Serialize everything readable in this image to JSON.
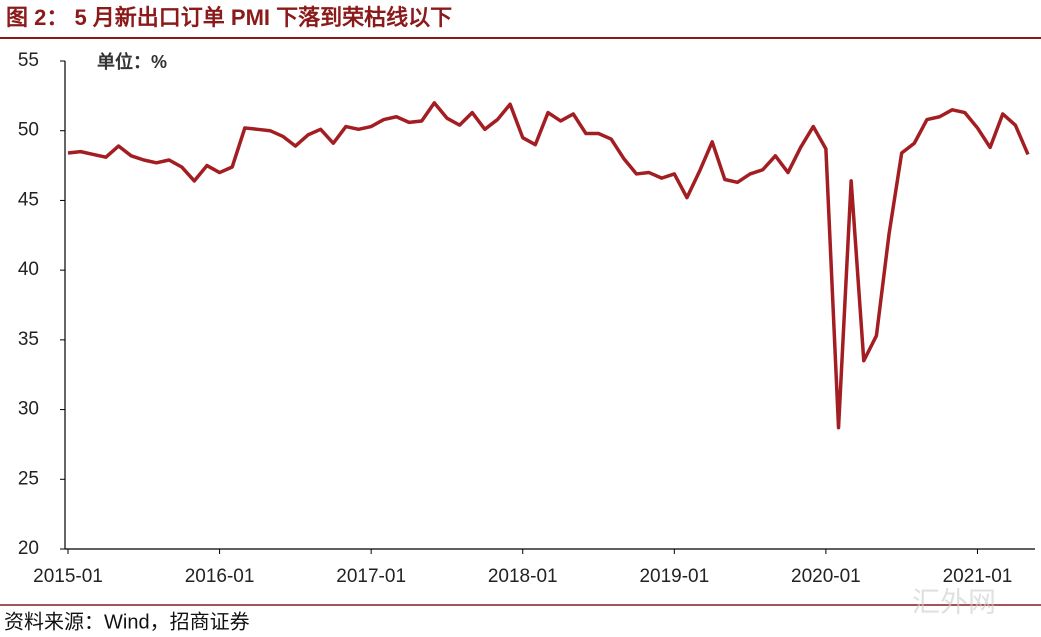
{
  "chart_data": {
    "type": "line",
    "title": "图 2： 5 月新出口订单 PMI 下落到荣枯线以下",
    "unit_label": "单位：%",
    "source": "资料来源：Wind，招商证券",
    "watermark": "汇外网",
    "x": [
      "2015-01",
      "2015-02",
      "2015-03",
      "2015-04",
      "2015-05",
      "2015-06",
      "2015-07",
      "2015-08",
      "2015-09",
      "2015-10",
      "2015-11",
      "2015-12",
      "2016-01",
      "2016-02",
      "2016-03",
      "2016-04",
      "2016-05",
      "2016-06",
      "2016-07",
      "2016-08",
      "2016-09",
      "2016-10",
      "2016-11",
      "2016-12",
      "2017-01",
      "2017-02",
      "2017-03",
      "2017-04",
      "2017-05",
      "2017-06",
      "2017-07",
      "2017-08",
      "2017-09",
      "2017-10",
      "2017-11",
      "2017-12",
      "2018-01",
      "2018-02",
      "2018-03",
      "2018-04",
      "2018-05",
      "2018-06",
      "2018-07",
      "2018-08",
      "2018-09",
      "2018-10",
      "2018-11",
      "2018-12",
      "2019-01",
      "2019-02",
      "2019-03",
      "2019-04",
      "2019-05",
      "2019-06",
      "2019-07",
      "2019-08",
      "2019-09",
      "2019-10",
      "2019-11",
      "2019-12",
      "2020-01",
      "2020-02",
      "2020-03",
      "2020-04",
      "2020-05",
      "2020-06",
      "2020-07",
      "2020-08",
      "2020-09",
      "2020-10",
      "2020-11",
      "2020-12",
      "2021-01",
      "2021-02",
      "2021-03",
      "2021-04",
      "2021-05"
    ],
    "series": [
      {
        "color": "#a31e22",
        "values": [
          48.4,
          48.5,
          48.3,
          48.1,
          48.9,
          48.2,
          47.9,
          47.7,
          47.9,
          47.4,
          46.4,
          47.5,
          47.0,
          47.4,
          50.2,
          50.1,
          50.0,
          49.6,
          48.9,
          49.7,
          50.1,
          49.1,
          50.3,
          50.1,
          50.3,
          50.8,
          51.0,
          50.6,
          50.7,
          52.0,
          50.9,
          50.4,
          51.3,
          50.1,
          50.8,
          51.9,
          49.5,
          49.0,
          51.3,
          50.7,
          51.2,
          49.8,
          49.8,
          49.4,
          48.0,
          46.9,
          47.0,
          46.6,
          46.9,
          45.2,
          47.1,
          49.2,
          46.5,
          46.3,
          46.9,
          47.2,
          48.2,
          47.0,
          48.8,
          50.3,
          48.7,
          28.7,
          46.4,
          33.5,
          35.3,
          42.6,
          48.4,
          49.1,
          50.8,
          51.0,
          51.5,
          51.3,
          50.2,
          48.8,
          51.2,
          50.4,
          48.3
        ]
      }
    ],
    "xticks": [
      "2015-01",
      "2016-01",
      "2017-01",
      "2018-01",
      "2019-01",
      "2020-01",
      "2021-01"
    ],
    "ylim": [
      20,
      55
    ],
    "yticks": [
      20,
      25,
      30,
      35,
      40,
      45,
      50,
      55
    ],
    "grid": false
  }
}
